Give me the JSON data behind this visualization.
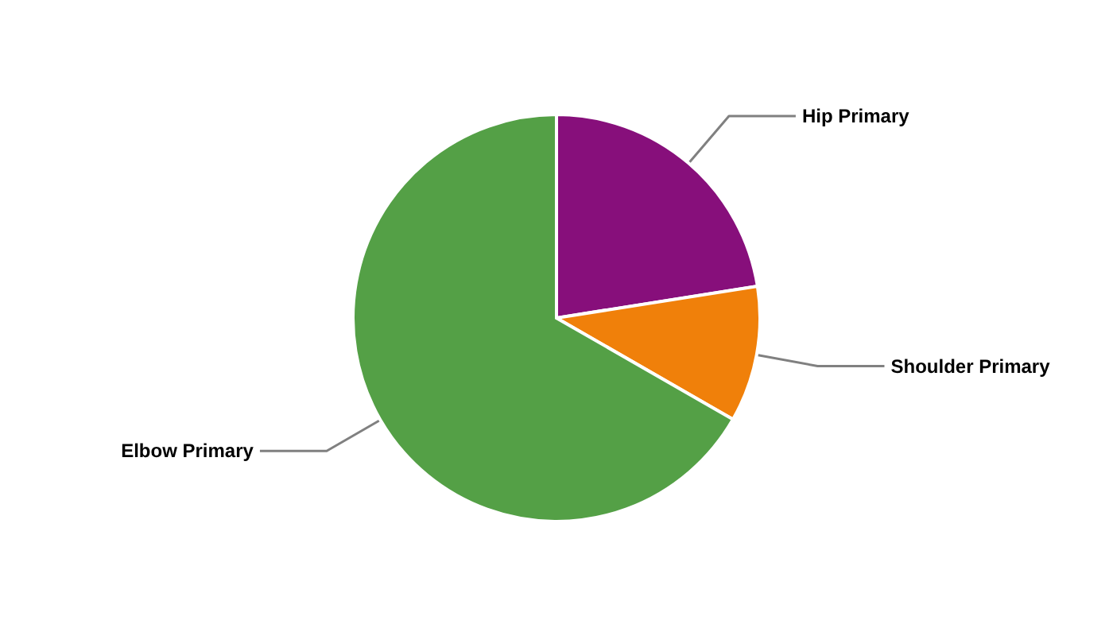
{
  "chart_data": {
    "type": "pie",
    "categories": [
      "Hip Primary",
      "Shoulder Primary",
      "Elbow Primary"
    ],
    "values": [
      22.5,
      10.8,
      66.7
    ],
    "colors": [
      "#870f7b",
      "#f0800a",
      "#54a046"
    ]
  }
}
